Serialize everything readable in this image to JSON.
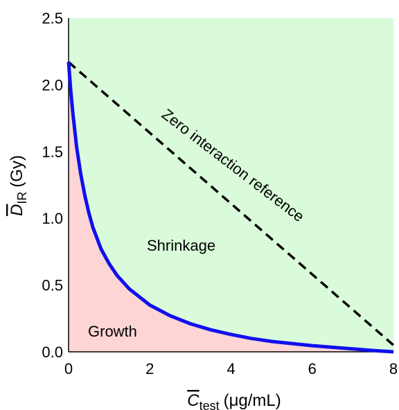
{
  "chart_data": {
    "type": "line",
    "xlabel_main": "C",
    "xlabel_sub": "test",
    "xlabel_units": "(μg/mL)",
    "ylabel_main": "D",
    "ylabel_sub": "IR",
    "ylabel_units": "(Gy)",
    "xlim": [
      0,
      8
    ],
    "ylim": [
      0,
      2.5
    ],
    "x_ticks": [
      "0",
      "2",
      "4",
      "6",
      "8"
    ],
    "y_ticks": [
      "0.0",
      "0.5",
      "1.0",
      "1.5",
      "2.0",
      "2.5"
    ],
    "x_tick_values": [
      0,
      2,
      4,
      6,
      8
    ],
    "y_tick_values": [
      0,
      0.5,
      1.0,
      1.5,
      2.0,
      2.5
    ],
    "grid": false,
    "series": [
      {
        "style": "solid",
        "color": "#1010ee",
        "x": [
          0,
          0.05,
          0.1,
          0.2,
          0.3,
          0.4,
          0.5,
          0.6,
          0.8,
          1.0,
          1.2,
          1.5,
          2.0,
          2.5,
          3.0,
          3.5,
          4.0,
          4.5,
          5.0,
          6.0,
          7.0,
          7.5,
          8.0
        ],
        "y": [
          2.17,
          1.97,
          1.8,
          1.53,
          1.33,
          1.17,
          1.04,
          0.93,
          0.77,
          0.66,
          0.57,
          0.47,
          0.35,
          0.27,
          0.21,
          0.165,
          0.13,
          0.1,
          0.078,
          0.046,
          0.022,
          0.01,
          0.0
        ]
      },
      {
        "style": "dashed",
        "color": "#000000",
        "x": [
          0,
          8
        ],
        "y": [
          2.17,
          0.05
        ]
      }
    ],
    "regions": {
      "growth": {
        "label": "Growth",
        "color": "#fdd5d5"
      },
      "shrinkage": {
        "label": "Shrinkage",
        "color": "#dafbda"
      }
    },
    "annotation": "Zero interaction reference"
  }
}
